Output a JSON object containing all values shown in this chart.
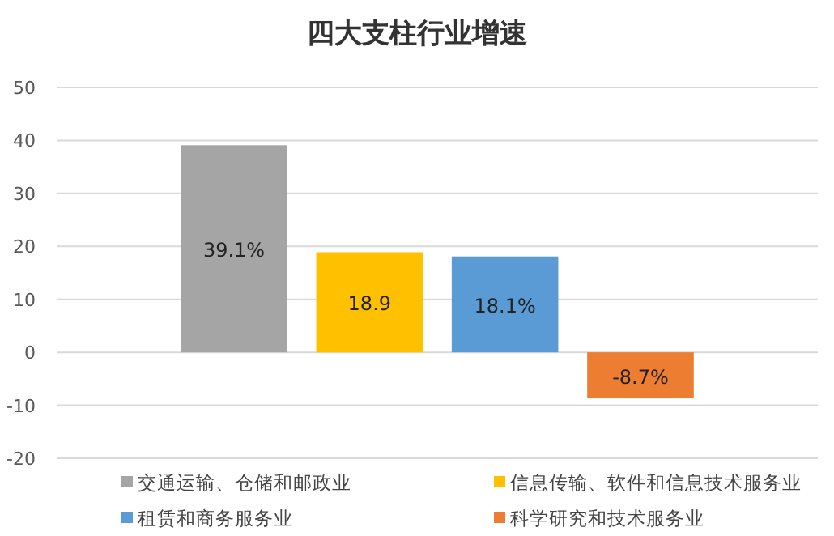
{
  "chart_data": {
    "type": "bar",
    "title": "四大支柱行业增速",
    "categories": [
      null
    ],
    "series": [
      {
        "name": "交通运输、仓储和邮政业",
        "color": "#a5a5a5",
        "values": [
          39.1
        ],
        "value_labels": [
          "39.1%"
        ]
      },
      {
        "name": "信息传输、软件和信息技术服务业",
        "color": "#ffc000",
        "values": [
          18.9
        ],
        "value_labels": [
          "18.9"
        ]
      },
      {
        "name": "租赁和商务服务业",
        "color": "#5b9bd5",
        "values": [
          18.1
        ],
        "value_labels": [
          "18.1%"
        ]
      },
      {
        "name": "科学研究和技术服务业",
        "color": "#ed7d31",
        "values": [
          -8.7
        ],
        "value_labels": [
          "-8.7%"
        ]
      }
    ],
    "ylim": [
      -20,
      50
    ],
    "yticks": [
      -20,
      -10,
      0,
      10,
      20,
      30,
      40,
      50
    ],
    "grid": "y",
    "legend": "bottom"
  }
}
